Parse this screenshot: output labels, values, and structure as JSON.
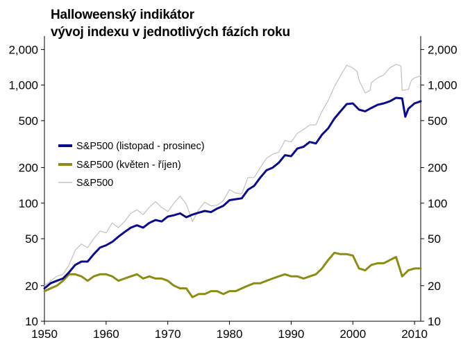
{
  "chart_data": {
    "type": "line",
    "title": "Halloweenský indikátor",
    "subtitle": "vývoj indexu v jednotlivých fázích roku",
    "xlabel": "",
    "ylabel": "",
    "yscale": "log",
    "xlim": [
      1950,
      2011
    ],
    "ylim": [
      10,
      2600
    ],
    "x_ticks": [
      1950,
      1960,
      1970,
      1980,
      1990,
      2000,
      2010
    ],
    "x_tick_labels": [
      "1950",
      "1960",
      "1970",
      "1980",
      "1990",
      "2000",
      "2010"
    ],
    "y_ticks": [
      10,
      20,
      50,
      100,
      200,
      500,
      1000,
      2000
    ],
    "y_tick_labels": [
      "10",
      "20",
      "50",
      "100",
      "200",
      "500",
      "1,000",
      "2,000"
    ],
    "y_axis_sides": [
      "left",
      "right"
    ],
    "grid": false,
    "legend_position": "left",
    "series": [
      {
        "name": "S&P500 (listopad - prosinec)",
        "color": "#0a0a8c",
        "stroke_width": 3,
        "x": [
          1950,
          1951,
          1952,
          1953,
          1954,
          1955,
          1956,
          1957,
          1958,
          1959,
          1960,
          1961,
          1962,
          1963,
          1964,
          1965,
          1966,
          1967,
          1968,
          1969,
          1970,
          1971,
          1972,
          1973,
          1974,
          1975,
          1976,
          1977,
          1978,
          1979,
          1980,
          1981,
          1982,
          1983,
          1984,
          1985,
          1986,
          1987,
          1988,
          1989,
          1990,
          1991,
          1992,
          1993,
          1994,
          1995,
          1996,
          1997,
          1998,
          1999,
          2000,
          2001,
          2002,
          2003,
          2004,
          2005,
          2006,
          2007,
          2008,
          2008.5,
          2009,
          2010,
          2011
        ],
        "values": [
          19,
          21,
          22,
          23,
          26,
          30,
          32,
          32,
          37,
          42,
          44,
          47,
          52,
          57,
          62,
          65,
          62,
          68,
          72,
          70,
          77,
          79,
          82,
          76,
          80,
          83,
          86,
          84,
          90,
          95,
          106,
          108,
          110,
          130,
          140,
          165,
          190,
          200,
          220,
          255,
          250,
          290,
          300,
          330,
          320,
          380,
          430,
          520,
          600,
          690,
          700,
          620,
          600,
          640,
          680,
          700,
          730,
          780,
          770,
          540,
          630,
          700,
          730
        ]
      },
      {
        "name": "S&P500 (květen - říjen)",
        "color": "#8c8c14",
        "stroke_width": 3,
        "x": [
          1950,
          1951,
          1952,
          1953,
          1954,
          1955,
          1956,
          1957,
          1958,
          1959,
          1960,
          1961,
          1962,
          1963,
          1964,
          1965,
          1966,
          1967,
          1968,
          1969,
          1970,
          1971,
          1972,
          1973,
          1974,
          1975,
          1976,
          1977,
          1978,
          1979,
          1980,
          1981,
          1982,
          1983,
          1984,
          1985,
          1986,
          1987,
          1988,
          1989,
          1990,
          1991,
          1992,
          1993,
          1994,
          1995,
          1996,
          1997,
          1998,
          1999,
          2000,
          2001,
          2002,
          2003,
          2004,
          2005,
          2006,
          2007,
          2008,
          2009,
          2010,
          2011
        ],
        "values": [
          18,
          19,
          20,
          22,
          25,
          25,
          24,
          22,
          24,
          25,
          25,
          24,
          22,
          23,
          24,
          25,
          23,
          24,
          23,
          23,
          22,
          20,
          19,
          19,
          16,
          17,
          17,
          18,
          18,
          17,
          18,
          18,
          19,
          20,
          21,
          21,
          22,
          23,
          24,
          25,
          24,
          24,
          23,
          24,
          25,
          28,
          33,
          38,
          37,
          37,
          36,
          28,
          27,
          30,
          31,
          31,
          33,
          35,
          24,
          27,
          28,
          28
        ]
      },
      {
        "name": "S&P500",
        "color": "#c0c0c0",
        "stroke_width": 1.2,
        "x": [
          1950,
          1951,
          1952,
          1953,
          1954,
          1955,
          1956,
          1957,
          1958,
          1959,
          1960,
          1961,
          1962,
          1963,
          1964,
          1965,
          1966,
          1967,
          1968,
          1969,
          1970,
          1971,
          1972,
          1973,
          1974,
          1975,
          1976,
          1977,
          1978,
          1979,
          1980,
          1981,
          1982,
          1983,
          1984,
          1985,
          1986,
          1987,
          1988,
          1989,
          1990,
          1991,
          1992,
          1993,
          1994,
          1995,
          1996,
          1997,
          1998,
          1999,
          2000,
          2000.7,
          2001,
          2002,
          2002.8,
          2003,
          2004,
          2005,
          2006,
          2007,
          2007.8,
          2008,
          2009,
          2009.5,
          2010,
          2011
        ],
        "values": [
          20,
          22,
          24,
          25,
          30,
          40,
          45,
          42,
          50,
          58,
          56,
          68,
          62,
          70,
          82,
          88,
          80,
          92,
          103,
          92,
          85,
          100,
          115,
          98,
          70,
          88,
          102,
          95,
          96,
          105,
          130,
          122,
          120,
          165,
          165,
          200,
          240,
          260,
          270,
          340,
          330,
          390,
          420,
          460,
          460,
          600,
          740,
          970,
          1200,
          1470,
          1400,
          1300,
          1100,
          860,
          900,
          1050,
          1150,
          1220,
          1400,
          1500,
          1450,
          900,
          920,
          1100,
          1150,
          1200
        ]
      }
    ]
  }
}
